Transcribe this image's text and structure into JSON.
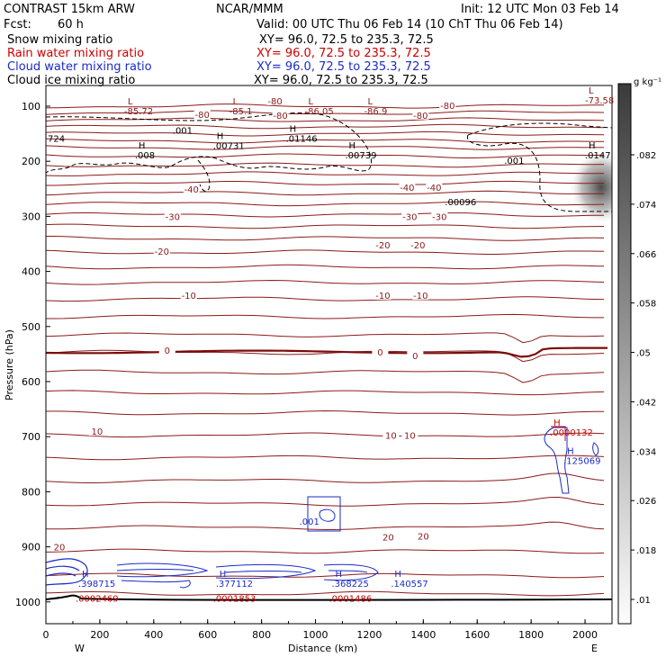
{
  "header": {
    "model": "CONTRAST 15km ARW",
    "center": "NCAR/MMM",
    "init": "Init: 12 UTC Mon 03 Feb 14",
    "fcst_label": "Fcst:",
    "fcst_value": "60 h",
    "valid": "Valid: 00 UTC Thu 06 Feb 14 (10 ChT Thu 06 Feb 14)",
    "xy_text": "XY=   96.0, 72.5 to 235.3, 72.5",
    "legend": [
      {
        "name": "Snow mixing ratio",
        "color": "#000000"
      },
      {
        "name": "Rain water mixing ratio",
        "color": "#cc0000"
      },
      {
        "name": "Cloud water mixing ratio",
        "color": "#1a2cc8"
      },
      {
        "name": "Cloud ice mixing ratio",
        "color": "#000000"
      }
    ]
  },
  "colors": {
    "temp_contour": "#8b1a1a",
    "cloud_water": "#1a2cc8",
    "rain": "#cc0000",
    "ice": "#000000"
  },
  "chart_data": {
    "type": "contour-cross-section",
    "xlabel": "Distance (km)",
    "ylabel": "Pressure (hPa)",
    "xlim": [
      0,
      2100
    ],
    "ylim": [
      1000,
      75
    ],
    "x_ticks": [
      0,
      200,
      400,
      600,
      800,
      1000,
      1200,
      1400,
      1600,
      1800,
      2000
    ],
    "y_ticks": [
      100,
      200,
      300,
      400,
      500,
      600,
      700,
      800,
      900,
      1000
    ],
    "x_endpoints": [
      "W",
      "E"
    ],
    "colorbar": {
      "unit": "g kg⁻¹",
      "ticks": [
        ".082",
        ".074",
        ".066",
        ".058",
        ".05",
        ".042",
        ".034",
        ".026",
        ".018",
        ".01"
      ]
    },
    "isotherm_pressures": [
      100,
      112,
      125,
      137,
      150,
      163,
      175,
      190,
      207,
      223,
      240,
      258,
      277,
      297,
      318,
      340,
      365,
      392,
      420,
      450,
      482,
      515,
      547,
      583,
      620,
      657,
      697,
      738,
      780,
      822,
      865,
      908,
      952,
      985
    ],
    "isotherm_labels": [
      {
        "text": "-80",
        "x": 850,
        "p": 90
      },
      {
        "text": "-80",
        "x": 1490,
        "p": 98
      },
      {
        "text": "-80",
        "x": 580,
        "p": 115
      },
      {
        "text": "-80",
        "x": 870,
        "p": 116
      },
      {
        "text": "-80",
        "x": 1390,
        "p": 116
      },
      {
        "text": "-40",
        "x": 540,
        "p": 250
      },
      {
        "text": "-40",
        "x": 1340,
        "p": 247
      },
      {
        "text": "-40",
        "x": 1440,
        "p": 247
      },
      {
        "text": "-30",
        "x": 470,
        "p": 300
      },
      {
        "text": "-30",
        "x": 1350,
        "p": 300
      },
      {
        "text": "-30",
        "x": 1460,
        "p": 300
      },
      {
        "text": "-20",
        "x": 430,
        "p": 363
      },
      {
        "text": "-20",
        "x": 1250,
        "p": 352
      },
      {
        "text": "-20",
        "x": 1380,
        "p": 352
      },
      {
        "text": "-10",
        "x": 530,
        "p": 443
      },
      {
        "text": "-10",
        "x": 1250,
        "p": 443
      },
      {
        "text": "-10",
        "x": 1390,
        "p": 443
      },
      {
        "text": "0",
        "x": 450,
        "p": 543
      },
      {
        "text": "0",
        "x": 1240,
        "p": 546
      },
      {
        "text": "0",
        "x": 1370,
        "p": 553
      },
      {
        "text": "10",
        "x": 190,
        "p": 690
      },
      {
        "text": "10",
        "x": 1280,
        "p": 697
      },
      {
        "text": "10",
        "x": 1350,
        "p": 697
      },
      {
        "text": "20",
        "x": 50,
        "p": 900
      },
      {
        "text": "20",
        "x": 1270,
        "p": 882
      },
      {
        "text": "20",
        "x": 1400,
        "p": 880
      }
    ],
    "extrema_labels": [
      {
        "kind": "L",
        "value": "-85.72",
        "x": 290,
        "p": 100,
        "color": "#8b1a1a"
      },
      {
        "kind": "L",
        "value": "-85.1",
        "x": 680,
        "p": 100,
        "color": "#8b1a1a"
      },
      {
        "kind": "L",
        "value": "-86.05",
        "x": 960,
        "p": 100,
        "color": "#8b1a1a"
      },
      {
        "kind": "L",
        "value": "-86.9",
        "x": 1180,
        "p": 100,
        "color": "#8b1a1a"
      },
      {
        "kind": "L",
        "value": "-73.58",
        "x": 2040,
        "p": 80,
        "color": "#8b1a1a"
      },
      {
        "kind": "H",
        "value": ".008",
        "x": 330,
        "p": 180,
        "color": "#000000"
      },
      {
        "kind": "H",
        "value": ".00731",
        "x": 620,
        "p": 163,
        "color": "#000000"
      },
      {
        "kind": "H",
        "value": ".01146",
        "x": 890,
        "p": 150,
        "color": "#000000"
      },
      {
        "kind": "H",
        "value": ".00739",
        "x": 1110,
        "p": 180,
        "color": "#000000"
      },
      {
        "kind": "H",
        "value": ".0147",
        "x": 2010,
        "p": 180,
        "color": "#000000"
      },
      {
        "kind": "",
        "value": ".00096",
        "x": 1480,
        "p": 265,
        "color": "#000000"
      },
      {
        "kind": "",
        "value": ".001",
        "x": 470,
        "p": 135,
        "color": "#000000"
      },
      {
        "kind": "",
        "value": ".001",
        "x": 1700,
        "p": 190,
        "color": "#000000"
      },
      {
        "kind": "",
        "value": "724",
        "x": 0,
        "p": 150,
        "color": "#000000"
      },
      {
        "kind": "H",
        "value": ".0000132",
        "x": 1870,
        "p": 683,
        "color": "#cc0000"
      },
      {
        "kind": "H",
        "value": ".125069",
        "x": 1920,
        "p": 735,
        "color": "#1a2cc8"
      },
      {
        "kind": "",
        "value": ".001",
        "x": 940,
        "p": 845,
        "color": "#1a2cc8"
      },
      {
        "kind": "H",
        "value": ".398715",
        "x": 120,
        "p": 958,
        "color": "#1a2cc8"
      },
      {
        "kind": "H",
        "value": ".377112",
        "x": 630,
        "p": 958,
        "color": "#1a2cc8"
      },
      {
        "kind": "H",
        "value": ".368225",
        "x": 1060,
        "p": 958,
        "color": "#1a2cc8"
      },
      {
        "kind": "H",
        "value": ".140557",
        "x": 1280,
        "p": 958,
        "color": "#1a2cc8"
      },
      {
        "kind": "",
        "value": ".0002469",
        "x": 110,
        "p": 985,
        "color": "#cc0000"
      },
      {
        "kind": "",
        "value": ".0001853",
        "x": 620,
        "p": 985,
        "color": "#cc0000"
      },
      {
        "kind": "",
        "value": ".0001486",
        "x": 1050,
        "p": 985,
        "color": "#cc0000"
      }
    ]
  }
}
